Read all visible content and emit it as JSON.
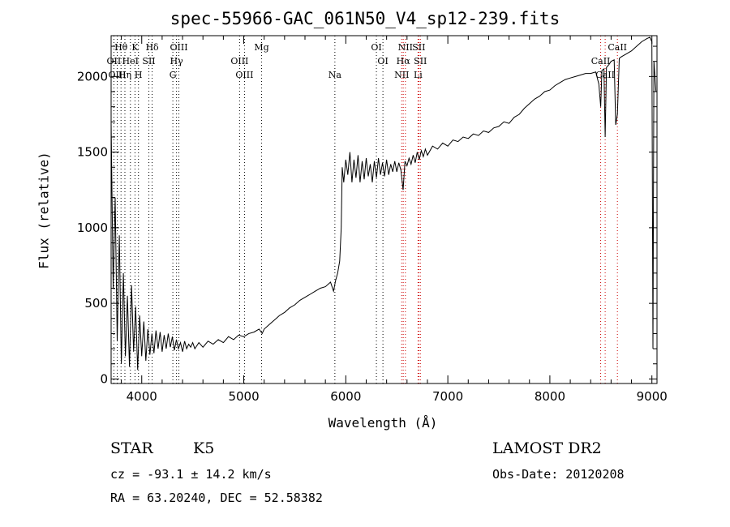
{
  "colors": {
    "background": "#ffffff",
    "ink": "#000000",
    "line_marker": "#cc0000"
  },
  "chart_data": {
    "type": "line",
    "title": "spec-55966-GAC_061N50_V4_sp12-239.fits",
    "xlabel": "Wavelength (Å)",
    "ylabel": "Flux (relative)",
    "xlim": [
      3700,
      9050
    ],
    "ylim": [
      -30,
      2270
    ],
    "xticks": [
      4000,
      5000,
      6000,
      7000,
      8000,
      9000
    ],
    "yticks": [
      0,
      500,
      1000,
      1500,
      2000
    ],
    "grid": false,
    "legend": "none",
    "series": [
      {
        "points": [
          [
            3700,
            1700
          ],
          [
            3720,
            600
          ],
          [
            3740,
            1200
          ],
          [
            3760,
            250
          ],
          [
            3780,
            950
          ],
          [
            3800,
            100
          ],
          [
            3820,
            700
          ],
          [
            3840,
            150
          ],
          [
            3860,
            550
          ],
          [
            3880,
            80
          ],
          [
            3900,
            620
          ],
          [
            3920,
            180
          ],
          [
            3940,
            480
          ],
          [
            3960,
            60
          ],
          [
            3980,
            420
          ],
          [
            4000,
            150
          ],
          [
            4020,
            380
          ],
          [
            4040,
            120
          ],
          [
            4060,
            330
          ],
          [
            4080,
            160
          ],
          [
            4100,
            300
          ],
          [
            4120,
            170
          ],
          [
            4140,
            320
          ],
          [
            4160,
            200
          ],
          [
            4180,
            310
          ],
          [
            4200,
            180
          ],
          [
            4220,
            290
          ],
          [
            4240,
            200
          ],
          [
            4260,
            300
          ],
          [
            4280,
            210
          ],
          [
            4300,
            280
          ],
          [
            4320,
            190
          ],
          [
            4340,
            260
          ],
          [
            4360,
            200
          ],
          [
            4380,
            240
          ],
          [
            4400,
            180
          ],
          [
            4420,
            250
          ],
          [
            4440,
            200
          ],
          [
            4460,
            230
          ],
          [
            4480,
            210
          ],
          [
            4500,
            240
          ],
          [
            4520,
            200
          ],
          [
            4560,
            240
          ],
          [
            4600,
            210
          ],
          [
            4650,
            250
          ],
          [
            4700,
            230
          ],
          [
            4750,
            260
          ],
          [
            4800,
            240
          ],
          [
            4850,
            280
          ],
          [
            4900,
            260
          ],
          [
            4950,
            290
          ],
          [
            5000,
            280
          ],
          [
            5050,
            300
          ],
          [
            5100,
            310
          ],
          [
            5150,
            330
          ],
          [
            5180,
            300
          ],
          [
            5200,
            330
          ],
          [
            5250,
            360
          ],
          [
            5300,
            390
          ],
          [
            5350,
            420
          ],
          [
            5400,
            440
          ],
          [
            5450,
            470
          ],
          [
            5500,
            490
          ],
          [
            5550,
            520
          ],
          [
            5600,
            540
          ],
          [
            5650,
            560
          ],
          [
            5700,
            580
          ],
          [
            5750,
            600
          ],
          [
            5800,
            610
          ],
          [
            5850,
            640
          ],
          [
            5880,
            580
          ],
          [
            5900,
            650
          ],
          [
            5920,
            700
          ],
          [
            5940,
            780
          ],
          [
            5955,
            1000
          ],
          [
            5965,
            1400
          ],
          [
            5980,
            1300
          ],
          [
            6000,
            1450
          ],
          [
            6020,
            1350
          ],
          [
            6040,
            1500
          ],
          [
            6060,
            1300
          ],
          [
            6080,
            1450
          ],
          [
            6100,
            1330
          ],
          [
            6120,
            1480
          ],
          [
            6140,
            1300
          ],
          [
            6160,
            1440
          ],
          [
            6180,
            1320
          ],
          [
            6200,
            1460
          ],
          [
            6220,
            1340
          ],
          [
            6240,
            1420
          ],
          [
            6260,
            1300
          ],
          [
            6280,
            1440
          ],
          [
            6300,
            1330
          ],
          [
            6320,
            1460
          ],
          [
            6340,
            1350
          ],
          [
            6360,
            1430
          ],
          [
            6380,
            1340
          ],
          [
            6400,
            1450
          ],
          [
            6420,
            1350
          ],
          [
            6440,
            1420
          ],
          [
            6460,
            1370
          ],
          [
            6480,
            1440
          ],
          [
            6500,
            1370
          ],
          [
            6520,
            1430
          ],
          [
            6540,
            1380
          ],
          [
            6562,
            1250
          ],
          [
            6580,
            1440
          ],
          [
            6600,
            1410
          ],
          [
            6620,
            1460
          ],
          [
            6640,
            1420
          ],
          [
            6660,
            1480
          ],
          [
            6680,
            1430
          ],
          [
            6700,
            1500
          ],
          [
            6720,
            1450
          ],
          [
            6740,
            1510
          ],
          [
            6760,
            1470
          ],
          [
            6780,
            1520
          ],
          [
            6800,
            1480
          ],
          [
            6850,
            1540
          ],
          [
            6900,
            1520
          ],
          [
            6950,
            1560
          ],
          [
            7000,
            1540
          ],
          [
            7050,
            1580
          ],
          [
            7100,
            1570
          ],
          [
            7150,
            1600
          ],
          [
            7200,
            1590
          ],
          [
            7250,
            1620
          ],
          [
            7300,
            1610
          ],
          [
            7350,
            1640
          ],
          [
            7400,
            1630
          ],
          [
            7450,
            1660
          ],
          [
            7500,
            1670
          ],
          [
            7550,
            1700
          ],
          [
            7600,
            1690
          ],
          [
            7650,
            1730
          ],
          [
            7700,
            1750
          ],
          [
            7750,
            1790
          ],
          [
            7800,
            1820
          ],
          [
            7850,
            1850
          ],
          [
            7900,
            1870
          ],
          [
            7950,
            1900
          ],
          [
            8000,
            1910
          ],
          [
            8050,
            1940
          ],
          [
            8100,
            1960
          ],
          [
            8150,
            1980
          ],
          [
            8200,
            1990
          ],
          [
            8250,
            2000
          ],
          [
            8300,
            2010
          ],
          [
            8350,
            2020
          ],
          [
            8400,
            2020
          ],
          [
            8450,
            2030
          ],
          [
            8480,
            1950
          ],
          [
            8498,
            1800
          ],
          [
            8510,
            2040
          ],
          [
            8530,
            2050
          ],
          [
            8542,
            1600
          ],
          [
            8555,
            2060
          ],
          [
            8580,
            2080
          ],
          [
            8600,
            2100
          ],
          [
            8630,
            2110
          ],
          [
            8645,
            1680
          ],
          [
            8662,
            1750
          ],
          [
            8680,
            2120
          ],
          [
            8700,
            2130
          ],
          [
            8750,
            2150
          ],
          [
            8800,
            2170
          ],
          [
            8850,
            2200
          ],
          [
            8900,
            2230
          ],
          [
            8950,
            2250
          ],
          [
            8980,
            2260
          ],
          [
            9000,
            2230
          ],
          [
            9010,
            200
          ],
          [
            9020,
            2100
          ],
          [
            9040,
            1900
          ]
        ]
      }
    ],
    "lines": [
      {
        "label": "Hθ",
        "x": 3797,
        "row": 0,
        "color": "black"
      },
      {
        "label": "K",
        "x": 3934,
        "row": 0,
        "color": "black"
      },
      {
        "label": "Hδ",
        "x": 4102,
        "row": 0,
        "color": "black"
      },
      {
        "label": "OIII",
        "x": 4364,
        "row": 0,
        "color": "black"
      },
      {
        "label": "Mg",
        "x": 5175,
        "row": 0,
        "color": "black"
      },
      {
        "label": "OI",
        "x": 6300,
        "row": 0,
        "color": "black"
      },
      {
        "label": "NII",
        "x": 6584,
        "row": 0,
        "color": "red"
      },
      {
        "label": "SII",
        "x": 6716,
        "row": 0,
        "color": "red"
      },
      {
        "label": "CaII",
        "x": 8662,
        "row": 0,
        "color": "red"
      },
      {
        "label": "OII",
        "x": 3727,
        "row": 1,
        "color": "black"
      },
      {
        "label": "HeI",
        "x": 3889,
        "row": 1,
        "color": "black"
      },
      {
        "label": "SII",
        "x": 4070,
        "row": 1,
        "color": "black"
      },
      {
        "label": "Hγ",
        "x": 4341,
        "row": 1,
        "color": "black"
      },
      {
        "label": "OIII",
        "x": 4959,
        "row": 1,
        "color": "black"
      },
      {
        "label": "OI",
        "x": 6364,
        "row": 1,
        "color": "black"
      },
      {
        "label": "Hα",
        "x": 6563,
        "row": 1,
        "color": "red"
      },
      {
        "label": "SII",
        "x": 6731,
        "row": 1,
        "color": "red"
      },
      {
        "label": "CaII",
        "x": 8498,
        "row": 1,
        "color": "red"
      },
      {
        "label": "OIII",
        "x": 3760,
        "row": 2,
        "color": "black"
      },
      {
        "label": "Hη",
        "x": 3835,
        "row": 2,
        "color": "black"
      },
      {
        "label": "H",
        "x": 3968,
        "row": 2,
        "color": "black"
      },
      {
        "label": "G",
        "x": 4305,
        "row": 2,
        "color": "black"
      },
      {
        "label": "OIII",
        "x": 5007,
        "row": 2,
        "color": "black"
      },
      {
        "label": "Na",
        "x": 5893,
        "row": 2,
        "color": "black"
      },
      {
        "label": "NII",
        "x": 6548,
        "row": 2,
        "color": "red"
      },
      {
        "label": "Li",
        "x": 6708,
        "row": 2,
        "color": "red"
      },
      {
        "label": "CaII",
        "x": 8542,
        "row": 2,
        "color": "red"
      }
    ]
  },
  "info": {
    "class_label": "STAR",
    "subclass": "K5",
    "survey": "LAMOST DR2",
    "redshift": "cz = -93.1 ± 14.2 km/s",
    "obs_date": "Obs-Date: 20120208",
    "coords": "RA =  63.20240, DEC =  52.58382"
  }
}
